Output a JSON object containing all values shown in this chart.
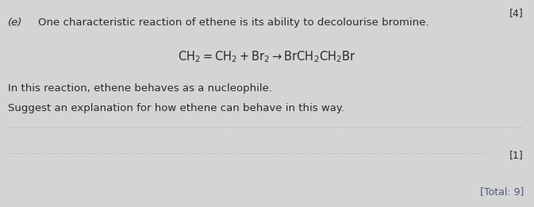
{
  "bg_color": "#d4d4d4",
  "label_e": "(e)",
  "line1": "One characteristic reaction of ethene is its ability to decolourise bromine.",
  "equation": "$\\mathrm{CH_2{=}CH_2 + Br_2 \\rightarrow BrCH_2CH_2Br}$",
  "line2": "In this reaction, ethene behaves as a nucleophile.",
  "line3": "Suggest an explanation for how ethene can behave in this way.",
  "mark": "[1]",
  "total": "[Total: 9]",
  "corner_label": "[4]",
  "font_size_main": 9.5,
  "font_size_eq": 10.5,
  "font_size_small": 9,
  "font_size_total": 9,
  "text_color": "#2a2a2a",
  "total_color": "#4a5a7a",
  "dot_line_color": "#999999"
}
